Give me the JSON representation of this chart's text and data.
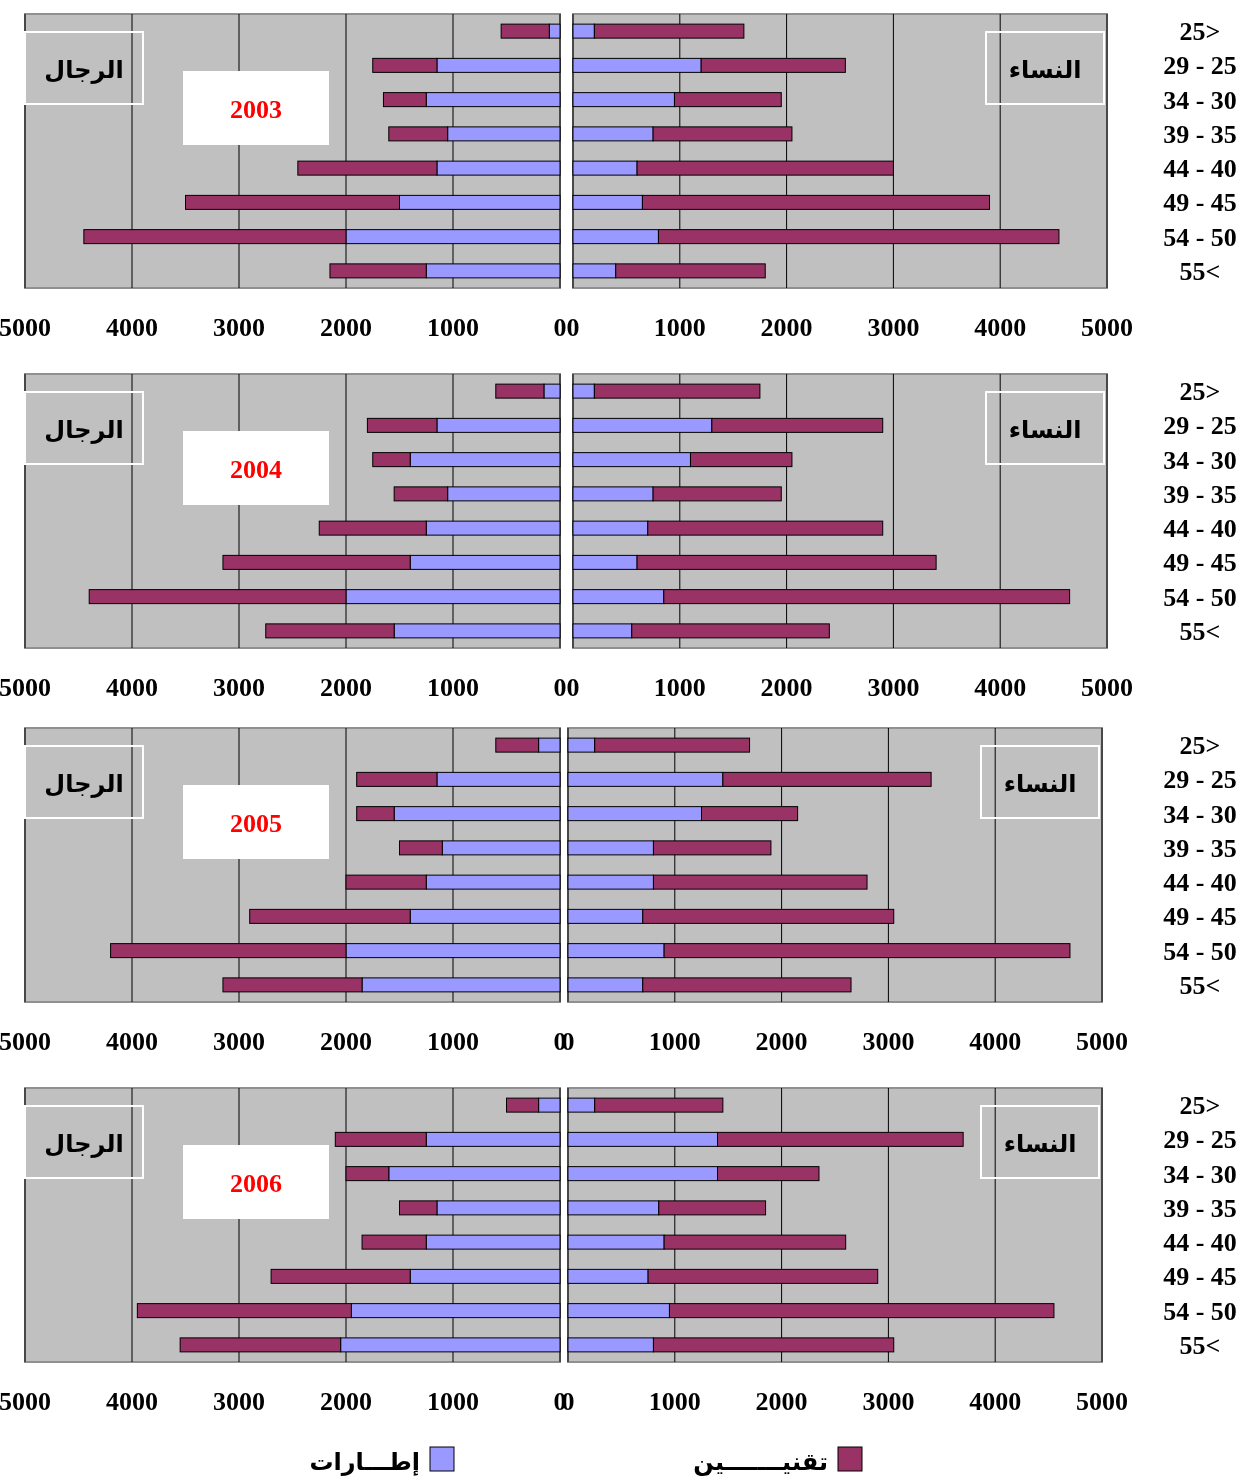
{
  "chart_data": [
    {
      "type": "bar",
      "orientation": "horizontal",
      "stacked": true,
      "title": "2003",
      "annotations": [
        "الرجال"
      ],
      "categories": [
        null,
        null,
        null,
        null,
        null,
        null,
        null,
        null
      ],
      "xlim": [
        5000,
        0
      ],
      "xticks": [
        5000,
        4000,
        3000,
        2000,
        1000,
        0
      ],
      "grid": "x",
      "series": [
        {
          "color": "#9999ff",
          "values": [
            100,
            1150,
            1250,
            1050,
            1150,
            1500,
            2000,
            1250
          ]
        },
        {
          "color": "#993366",
          "values": [
            450,
            600,
            400,
            550,
            1300,
            2000,
            2450,
            900
          ]
        }
      ]
    },
    {
      "type": "bar",
      "orientation": "horizontal",
      "stacked": true,
      "annotations": [
        "النساء"
      ],
      "categories": [
        "25>",
        "29 - 25",
        "34 - 30",
        "39 - 35",
        "44 - 40",
        "49 - 45",
        "54 - 50",
        "55<"
      ],
      "xlim": [
        0,
        5000
      ],
      "xticks": [
        0,
        1000,
        2000,
        3000,
        4000,
        5000
      ],
      "grid": "x",
      "series": [
        {
          "color": "#9999ff",
          "values": [
            200,
            1200,
            950,
            750,
            600,
            650,
            800,
            400
          ]
        },
        {
          "color": "#993366",
          "values": [
            1400,
            1350,
            1000,
            1300,
            2400,
            3250,
            3750,
            1400
          ]
        }
      ]
    },
    {
      "type": "bar",
      "orientation": "horizontal",
      "stacked": true,
      "title": "2004",
      "annotations": [
        "الرجال"
      ],
      "categories": [
        null,
        null,
        null,
        null,
        null,
        null,
        null,
        null
      ],
      "xlim": [
        5000,
        0
      ],
      "xticks": [
        5000,
        4000,
        3000,
        2000,
        1000,
        0
      ],
      "grid": "x",
      "series": [
        {
          "color": "#9999ff",
          "values": [
            150,
            1150,
            1400,
            1050,
            1250,
            1400,
            2000,
            1550
          ]
        },
        {
          "color": "#993366",
          "values": [
            450,
            650,
            350,
            500,
            1000,
            1750,
            2400,
            1200
          ]
        }
      ]
    },
    {
      "type": "bar",
      "orientation": "horizontal",
      "stacked": true,
      "annotations": [
        "النساء"
      ],
      "categories": [
        "25>",
        "29 - 25",
        "34 - 30",
        "39 - 35",
        "44 - 40",
        "49 - 45",
        "54 - 50",
        "55<"
      ],
      "xlim": [
        0,
        5000
      ],
      "xticks": [
        0,
        1000,
        2000,
        3000,
        4000,
        5000
      ],
      "grid": "x",
      "series": [
        {
          "color": "#9999ff",
          "values": [
            200,
            1300,
            1100,
            750,
            700,
            600,
            850,
            550
          ]
        },
        {
          "color": "#993366",
          "values": [
            1550,
            1600,
            950,
            1200,
            2200,
            2800,
            3800,
            1850
          ]
        }
      ]
    },
    {
      "type": "bar",
      "orientation": "horizontal",
      "stacked": true,
      "title": "2005",
      "annotations": [
        "الرجال"
      ],
      "categories": [
        null,
        null,
        null,
        null,
        null,
        null,
        null,
        null
      ],
      "xlim": [
        5000,
        0
      ],
      "xticks": [
        5000,
        4000,
        3000,
        2000,
        1000,
        0
      ],
      "grid": "x",
      "series": [
        {
          "color": "#9999ff",
          "values": [
            200,
            1150,
            1550,
            1100,
            1250,
            1400,
            2000,
            1850
          ]
        },
        {
          "color": "#993366",
          "values": [
            400,
            750,
            350,
            400,
            750,
            1500,
            2200,
            1300
          ]
        }
      ]
    },
    {
      "type": "bar",
      "orientation": "horizontal",
      "stacked": true,
      "annotations": [
        "النساء"
      ],
      "categories": [
        "25>",
        "29 - 25",
        "34 - 30",
        "39 - 35",
        "44 - 40",
        "49 - 45",
        "54 - 50",
        "55<"
      ],
      "xlim": [
        0,
        5000
      ],
      "xticks": [
        0,
        1000,
        2000,
        3000,
        4000,
        5000
      ],
      "grid": "x",
      "series": [
        {
          "color": "#9999ff",
          "values": [
            250,
            1450,
            1250,
            800,
            800,
            700,
            900,
            700
          ]
        },
        {
          "color": "#993366",
          "values": [
            1450,
            1950,
            900,
            1100,
            2000,
            2350,
            3800,
            1950
          ]
        }
      ]
    },
    {
      "type": "bar",
      "orientation": "horizontal",
      "stacked": true,
      "title": "2006",
      "annotations": [
        "الرجال"
      ],
      "categories": [
        null,
        null,
        null,
        null,
        null,
        null,
        null,
        null
      ],
      "xlim": [
        5000,
        0
      ],
      "xticks": [
        5000,
        4000,
        3000,
        2000,
        1000,
        0
      ],
      "grid": "x",
      "legend": "bottom",
      "series": [
        {
          "name": "إطـــارات",
          "color": "#9999ff",
          "values": [
            200,
            1250,
            1600,
            1150,
            1250,
            1400,
            1950,
            2050
          ]
        },
        {
          "name": "تقنيـــــــين",
          "color": "#993366",
          "values": [
            300,
            850,
            400,
            350,
            600,
            1300,
            2000,
            1500
          ]
        }
      ]
    },
    {
      "type": "bar",
      "orientation": "horizontal",
      "stacked": true,
      "annotations": [
        "النساء"
      ],
      "categories": [
        "25>",
        "29 - 25",
        "34 - 30",
        "39 - 35",
        "44 - 40",
        "49 - 45",
        "54 - 50",
        "55<"
      ],
      "xlim": [
        0,
        5000
      ],
      "xticks": [
        0,
        1000,
        2000,
        3000,
        4000,
        5000
      ],
      "grid": "x",
      "series": [
        {
          "color": "#9999ff",
          "values": [
            250,
            1400,
            1400,
            850,
            900,
            750,
            950,
            800
          ]
        },
        {
          "color": "#993366",
          "values": [
            1200,
            2300,
            950,
            1000,
            1700,
            2150,
            3600,
            2250
          ]
        }
      ]
    }
  ]
}
